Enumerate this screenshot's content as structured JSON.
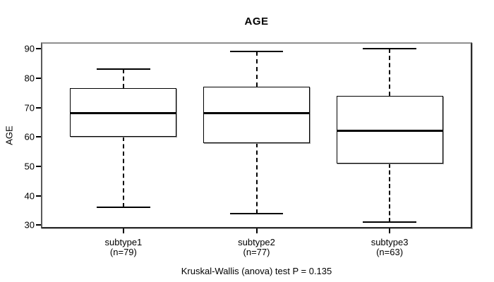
{
  "figure": {
    "title": "AGE",
    "y_axis_label": "AGE",
    "footer": "Kruskal-Wallis (anova) test P = 0.135"
  },
  "colors": {
    "box_fill": "#ffffff",
    "line": "#000000",
    "frame": "#808080",
    "background": "#ffffff"
  },
  "chart_data": {
    "type": "boxplot",
    "title": "AGE",
    "xlabel": "",
    "ylabel": "AGE",
    "ylim": [
      28.9,
      92.2
    ],
    "yticks": [
      30,
      40,
      50,
      60,
      70,
      80,
      90
    ],
    "grid": false,
    "legend": false,
    "categories": [
      "subtype1",
      "subtype2",
      "subtype3"
    ],
    "series": [
      {
        "name": "subtype1",
        "count_label": "(n=79)",
        "whisker_low": 36,
        "q1": 60,
        "median": 68,
        "q3": 76.5,
        "whisker_high": 83
      },
      {
        "name": "subtype2",
        "count_label": "(n=77)",
        "whisker_low": 34,
        "q1": 58,
        "median": 68,
        "q3": 77,
        "whisker_high": 89
      },
      {
        "name": "subtype3",
        "count_label": "(n=63)",
        "whisker_low": 31,
        "q1": 51,
        "median": 62,
        "q3": 74,
        "whisker_high": 90
      }
    ],
    "annotation": "Kruskal-Wallis (anova) test P = 0.135"
  }
}
